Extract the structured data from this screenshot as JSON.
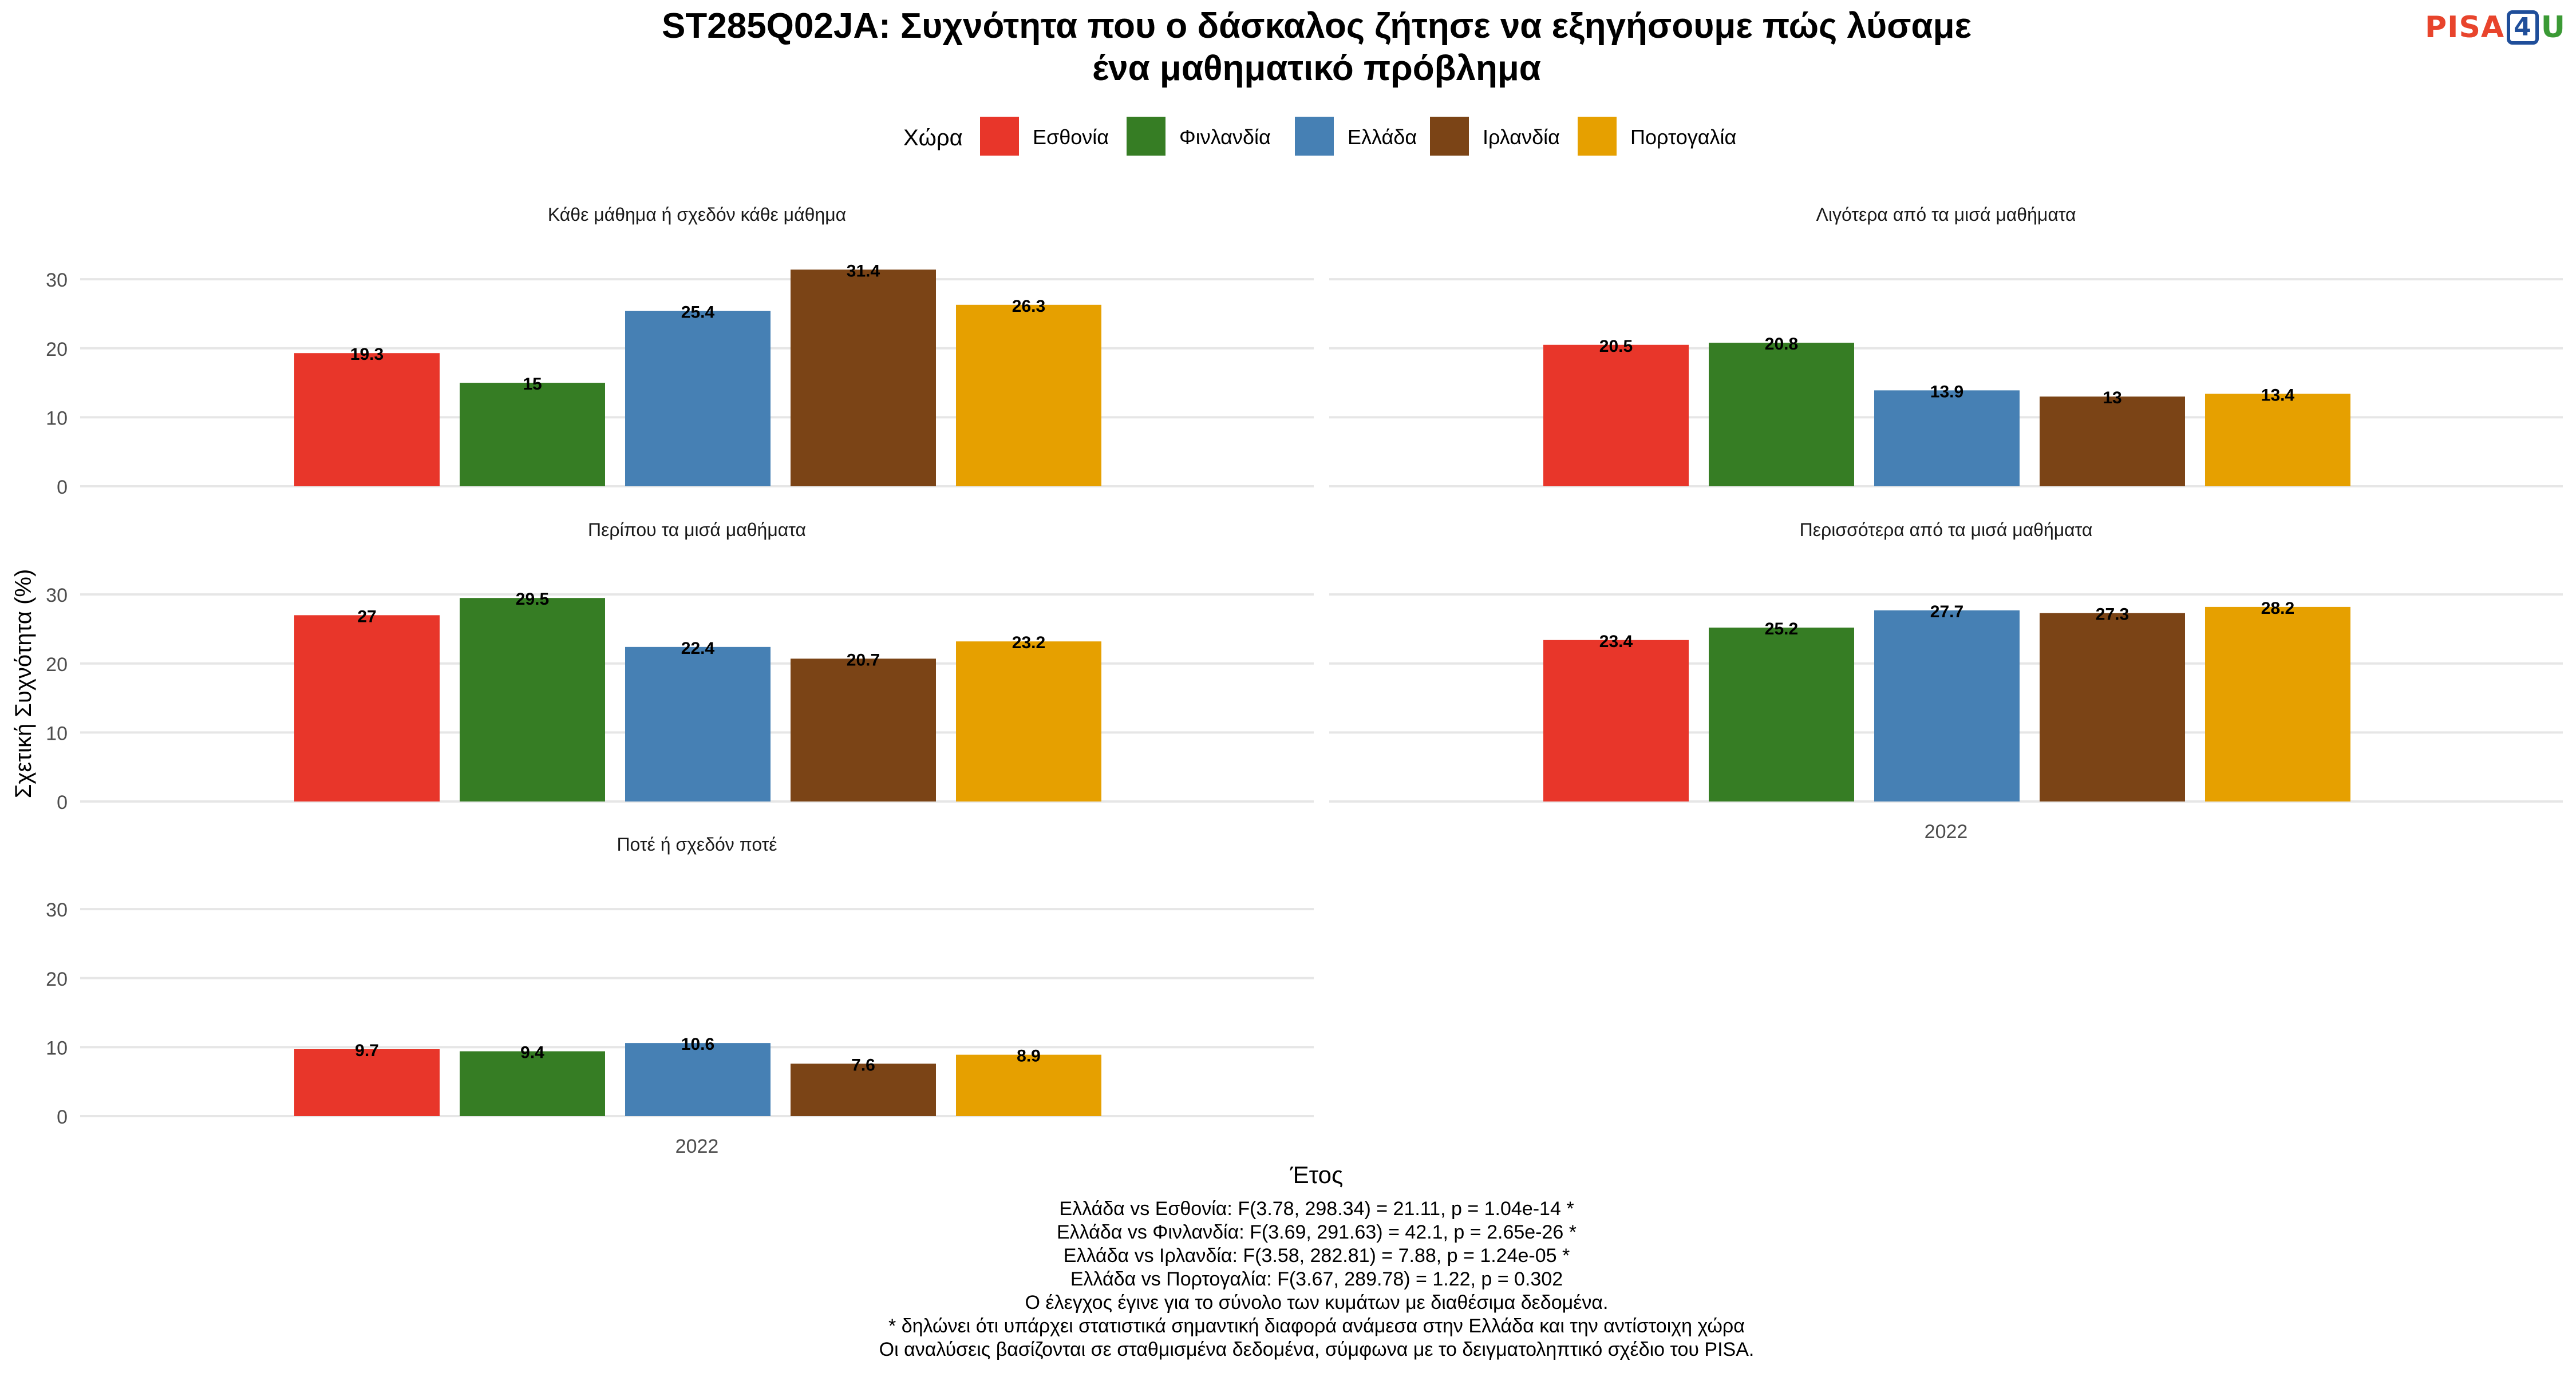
{
  "title_line1": "ST285Q02JA: Συχνότητα που ο δάσκαλος ζήτησε να εξηγήσουμε πώς λύσαμε",
  "title_line2": "ένα μαθηματικό πρόβλημα",
  "logo": {
    "text_pisa": "PISA",
    "text_four": "4",
    "text_u": "U"
  },
  "legend_title": "Χώρα",
  "ylabel": "Σχετική Συχνότητα (%)",
  "xlabel": "Έτος",
  "footnotes": [
    "Ελλάδα vs Εσθονία: F(3.78, 298.34) = 21.11, p = 1.04e-14 *",
    "Ελλάδα vs Φινλανδία: F(3.69, 291.63) = 42.1, p = 2.65e-26 *",
    "Ελλάδα vs Ιρλανδία: F(3.58, 282.81) = 7.88, p = 1.24e-05 *",
    "Ελλάδα vs Πορτογαλία: F(3.67, 289.78) = 1.22, p = 0.302",
    "Ο έλεγχος έγινε για το σύνολο των κυμάτων με διαθέσιμα δεδομένα.",
    "* δηλώνει ότι υπάρχει στατιστικά σημαντική διαφορά ανάμεσα στην Ελλάδα και την αντίστοιχη χώρα",
    "Οι αναλύσεις βασίζονται σε σταθμισμένα δεδομένα, σύμφωνα με το δειγματοληπτικό σχέδιο του PISA."
  ],
  "colors": {
    "Εσθονία": "#e8362a",
    "Φινλανδία": "#367d24",
    "Ελλάδα": "#4680b4",
    "Ιρλανδία": "#7b4416",
    "Πορτογαλία": "#e6a000",
    "grid": "#e6e6e6",
    "axis_text": "#4d4d4d"
  },
  "chart_data": {
    "type": "bar",
    "x_categories": [
      "2022"
    ],
    "series_names": [
      "Εσθονία",
      "Φινλανδία",
      "Ελλάδα",
      "Ιρλανδία",
      "Πορτογαλία"
    ],
    "ylim": [
      0,
      33
    ],
    "yticks": [
      0,
      10,
      20,
      30
    ],
    "grid": true,
    "legend_position": "top",
    "panels": [
      {
        "title": "Κάθε μάθημα ή σχεδόν κάθε μάθημα",
        "values": [
          19.3,
          15,
          25.4,
          31.4,
          26.3
        ],
        "labels": [
          "19.3",
          "15",
          "25.4",
          "31.4",
          "26.3"
        ]
      },
      {
        "title": "Λιγότερα από τα μισά μαθήματα",
        "values": [
          20.5,
          20.8,
          13.9,
          13,
          13.4
        ],
        "labels": [
          "20.5",
          "20.8",
          "13.9",
          "13",
          "13.4"
        ]
      },
      {
        "title": "Περίπου τα μισά μαθήματα",
        "values": [
          27,
          29.5,
          22.4,
          20.7,
          23.2
        ],
        "labels": [
          "27",
          "29.5",
          "22.4",
          "20.7",
          "23.2"
        ]
      },
      {
        "title": "Περισσότερα από τα μισά μαθήματα",
        "values": [
          23.4,
          25.2,
          27.7,
          27.3,
          28.2
        ],
        "labels": [
          "23.4",
          "25.2",
          "27.7",
          "27.3",
          "28.2"
        ]
      },
      {
        "title": "Ποτέ ή σχεδόν ποτέ",
        "values": [
          9.7,
          9.4,
          10.6,
          7.6,
          8.9
        ],
        "labels": [
          "9.7",
          "9.4",
          "10.6",
          "7.6",
          "8.9"
        ]
      }
    ]
  }
}
